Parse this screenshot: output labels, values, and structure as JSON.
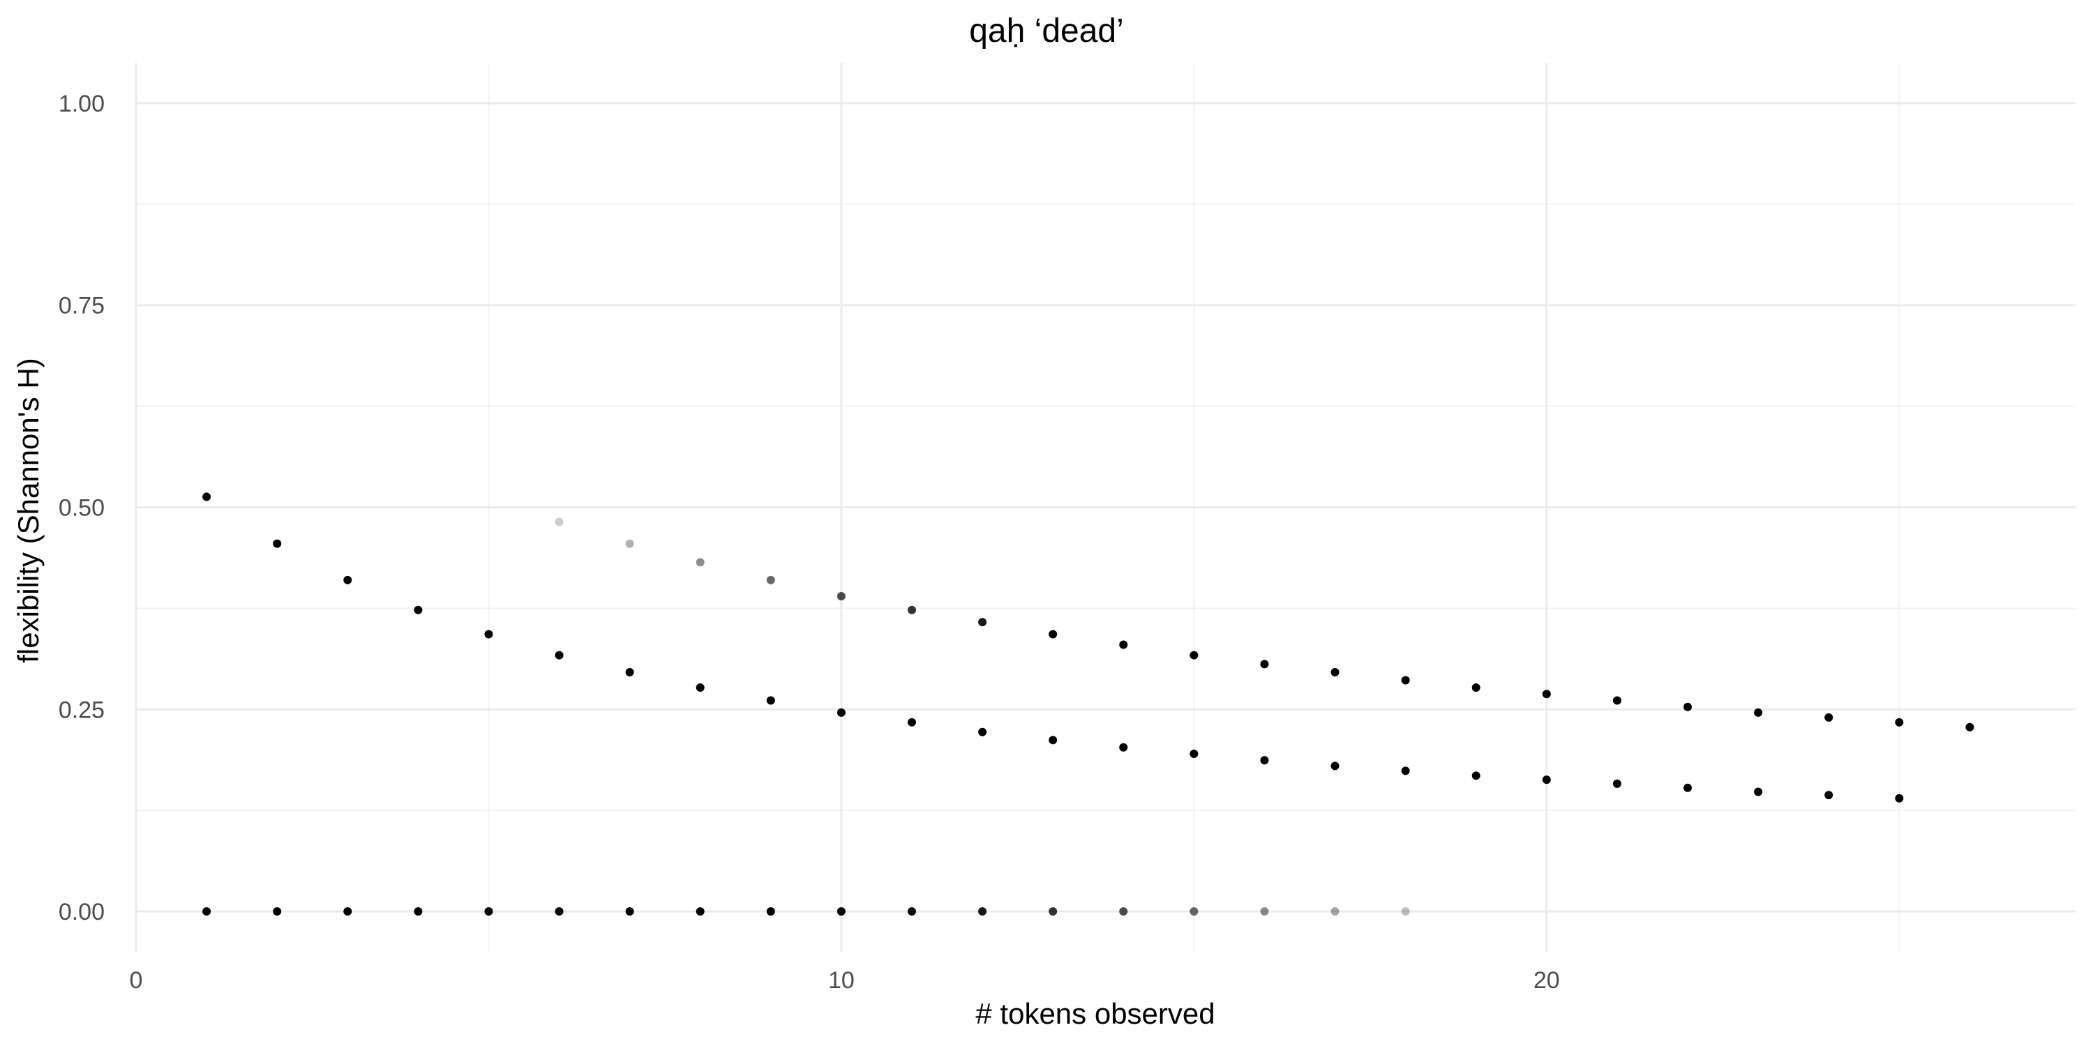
{
  "chart_data": {
    "type": "scatter",
    "title": "qaḥ ‘dead’",
    "xlabel": "# tokens observed",
    "ylabel": "flexibility (Shannon's H)",
    "xlim": [
      0,
      27.5
    ],
    "ylim": [
      -0.05,
      1.05
    ],
    "x_major_ticks": [
      0,
      10,
      20
    ],
    "x_tick_labels": [
      "0",
      "10",
      "20"
    ],
    "x_minor_ticks": [
      5,
      15,
      25
    ],
    "y_major_ticks": [
      0,
      0.25,
      0.5,
      0.75,
      1
    ],
    "y_tick_labels": [
      "0.00",
      "0.25",
      "0.50",
      "0.75",
      "1.00"
    ],
    "y_minor_ticks": [
      0.125,
      0.375,
      0.625,
      0.875
    ],
    "grid": true,
    "point_color": "#000000",
    "series": [
      {
        "x": [
          1,
          2,
          3,
          4,
          5,
          6,
          7,
          8,
          9,
          10,
          11,
          12,
          13,
          14,
          15,
          16,
          17,
          18
        ],
        "values": [
          0,
          0,
          0,
          0,
          0,
          0,
          0,
          0,
          0,
          0,
          0,
          0,
          0,
          0,
          0,
          0,
          0,
          0
        ],
        "opacity": [
          1,
          1,
          1,
          1,
          1,
          1,
          1,
          1,
          1,
          1,
          0.95,
          0.9,
          0.8,
          0.7,
          0.6,
          0.45,
          0.35,
          0.25
        ]
      },
      {
        "x": [
          1,
          2,
          3,
          4,
          5,
          6,
          7,
          8,
          9,
          10,
          11,
          12,
          13,
          14,
          15,
          16,
          17,
          18,
          19,
          20,
          21,
          22,
          23,
          24,
          25
        ],
        "values": [
          0.513,
          0.455,
          0.41,
          0.373,
          0.343,
          0.317,
          0.296,
          0.277,
          0.261,
          0.246,
          0.234,
          0.222,
          0.212,
          0.203,
          0.195,
          0.187,
          0.18,
          0.174,
          0.168,
          0.163,
          0.158,
          0.153,
          0.148,
          0.144,
          0.14
        ],
        "opacity": [
          1,
          1,
          1,
          1,
          1,
          1,
          1,
          1,
          1,
          1,
          1,
          1,
          1,
          1,
          1,
          1,
          1,
          1,
          1,
          1,
          1,
          1,
          1,
          1,
          1
        ]
      },
      {
        "x": [
          6,
          7,
          8,
          9,
          10,
          11,
          12,
          13,
          14,
          15,
          16,
          17,
          18,
          19,
          20,
          21,
          22,
          23,
          24,
          25,
          26
        ],
        "values": [
          0.482,
          0.455,
          0.432,
          0.41,
          0.39,
          0.373,
          0.358,
          0.343,
          0.33,
          0.317,
          0.306,
          0.296,
          0.286,
          0.277,
          0.269,
          0.261,
          0.253,
          0.246,
          0.24,
          0.234,
          0.228
        ],
        "opacity": [
          0.2,
          0.3,
          0.45,
          0.6,
          0.7,
          0.8,
          0.9,
          1,
          1,
          1,
          1,
          1,
          1,
          1,
          1,
          1,
          1,
          1,
          1,
          1,
          1
        ]
      }
    ]
  }
}
